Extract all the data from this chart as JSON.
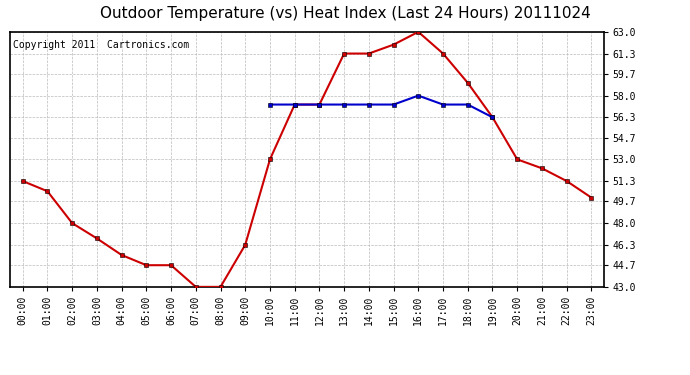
{
  "title": "Outdoor Temperature (vs) Heat Index (Last 24 Hours) 20111024",
  "copyright": "Copyright 2011  Cartronics.com",
  "hours": [
    "00:00",
    "01:00",
    "02:00",
    "03:00",
    "04:00",
    "05:00",
    "06:00",
    "07:00",
    "08:00",
    "09:00",
    "10:00",
    "11:00",
    "12:00",
    "13:00",
    "14:00",
    "15:00",
    "16:00",
    "17:00",
    "18:00",
    "19:00",
    "20:00",
    "21:00",
    "22:00",
    "23:00"
  ],
  "temp": [
    51.3,
    50.5,
    48.0,
    46.8,
    45.5,
    44.7,
    44.7,
    43.0,
    43.0,
    46.3,
    53.0,
    57.3,
    57.3,
    61.3,
    61.3,
    62.0,
    63.0,
    61.3,
    59.0,
    56.3,
    53.0,
    52.3,
    51.3,
    50.0
  ],
  "heat": [
    null,
    null,
    null,
    null,
    null,
    null,
    null,
    null,
    null,
    null,
    57.3,
    57.3,
    57.3,
    57.3,
    57.3,
    57.3,
    58.0,
    57.3,
    57.3,
    56.3,
    null,
    null,
    null,
    null
  ],
  "temp_color": "#cc0000",
  "heat_color": "#0000cc",
  "bg_color": "#ffffff",
  "plot_bg_color": "#ffffff",
  "grid_color": "#bbbbbb",
  "ylim_min": 43.0,
  "ylim_max": 63.0,
  "yticks": [
    43.0,
    44.7,
    46.3,
    48.0,
    49.7,
    51.3,
    53.0,
    54.7,
    56.3,
    58.0,
    59.7,
    61.3,
    63.0
  ],
  "title_fontsize": 11,
  "copyright_fontsize": 7,
  "tick_fontsize": 7,
  "marker": "s",
  "marker_size": 2.5,
  "line_width": 1.5
}
